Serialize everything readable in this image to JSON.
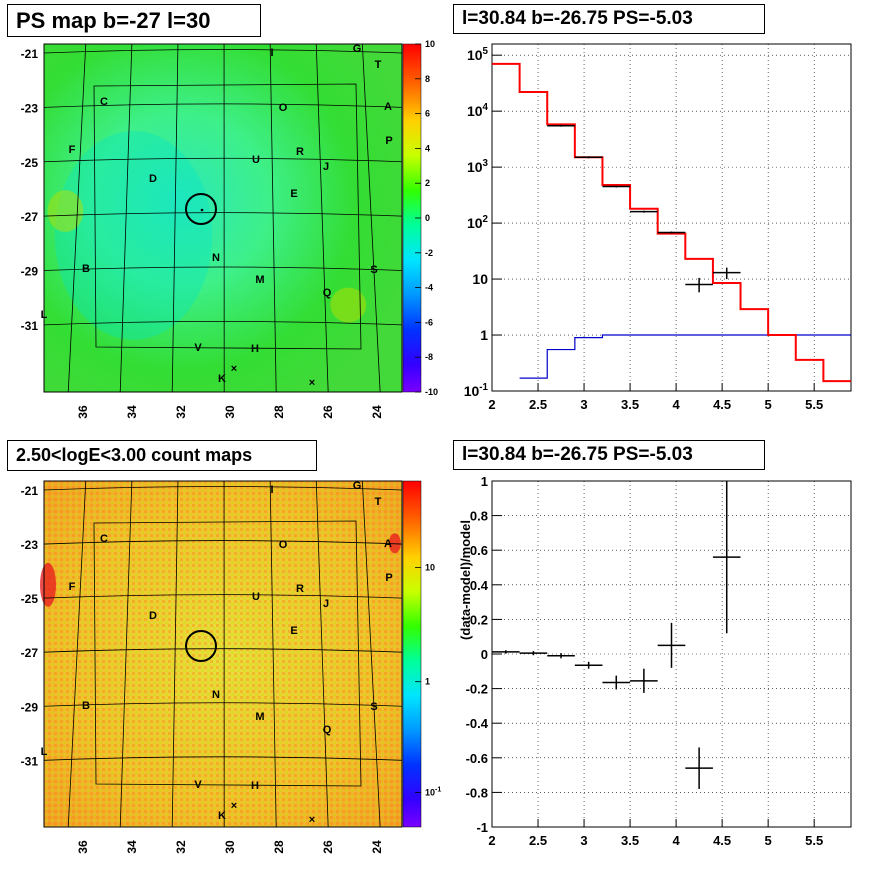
{
  "panels": {
    "tl_title": "PS map b=-27 l=30",
    "tr_title": "l=30.84 b=-26.75 PS=-5.03",
    "bl_title": "2.50<logE<3.00 count maps",
    "br_title": "l=30.84 b=-26.75 PS=-5.03"
  },
  "chart_data": [
    {
      "type": "heatmap",
      "name_printed": "",
      "x_ticks": [
        "36",
        "34",
        "32",
        "30",
        "28",
        "26",
        "24"
      ],
      "y_ticks": [
        "-21",
        "-23",
        "-25",
        "-27",
        "-29",
        "-31"
      ],
      "colorbar_ticks": [
        "10",
        "8",
        "6",
        "4",
        "2",
        "0",
        "-2",
        "-4",
        "-6",
        "-8",
        "-10"
      ],
      "zlim": [
        -10,
        10
      ],
      "source_labels": [
        "I",
        "G",
        "T",
        "C",
        "O",
        "A",
        "P",
        "F",
        "U",
        "R",
        "J",
        "D",
        "E",
        "N",
        "B",
        "M",
        "S",
        "Q",
        "V",
        "H",
        "K",
        "L"
      ],
      "marker": {
        "l": 30.84,
        "b": -26.75
      }
    },
    {
      "type": "step",
      "xlim": [
        2,
        5.9
      ],
      "y_log": true,
      "y_ticks": [
        "10^-1",
        "1",
        "10",
        "10^2",
        "10^3",
        "10^4",
        "10^5"
      ],
      "x_ticks": [
        "2",
        "2.5",
        "3",
        "3.5",
        "4",
        "4.5",
        "5",
        "5.5"
      ],
      "model_red": {
        "color": "#ff0000",
        "edges": [
          2.0,
          2.3,
          2.6,
          2.9,
          3.2,
          3.5,
          3.8,
          4.1,
          4.4,
          4.7,
          5.0,
          5.3,
          5.6,
          5.9
        ],
        "values": [
          70000,
          22000,
          5800,
          1500,
          480,
          180,
          65,
          23,
          8.5,
          2.9,
          1.0,
          0.36,
          0.15
        ]
      },
      "model_blue": {
        "color": "#0000cc",
        "edges": [
          2.3,
          2.6,
          2.9,
          3.2,
          3.5,
          3.8,
          4.1,
          4.4,
          4.7,
          5.0,
          5.3,
          5.9
        ],
        "values": [
          0.17,
          0.55,
          0.9,
          1.0,
          1.0,
          1.0,
          1.0,
          1.0,
          1.0,
          1.0,
          1.0
        ]
      },
      "data_points": [
        {
          "x": 2.75,
          "y": 5500,
          "xerr": 0.15
        },
        {
          "x": 3.05,
          "y": 1500,
          "xerr": 0.15
        },
        {
          "x": 3.35,
          "y": 450,
          "xerr": 0.15
        },
        {
          "x": 3.65,
          "y": 160,
          "xerr": 0.15
        },
        {
          "x": 3.95,
          "y": 68,
          "xerr": 0.15
        },
        {
          "x": 4.25,
          "y": 8.0,
          "xerr": 0.15,
          "ylo": 5.8,
          "yhi": 10.5
        },
        {
          "x": 4.55,
          "y": 13,
          "xerr": 0.15,
          "ylo": 10,
          "yhi": 16
        }
      ]
    },
    {
      "type": "heatmap",
      "x_ticks": [
        "36",
        "34",
        "32",
        "30",
        "28",
        "26",
        "24"
      ],
      "y_ticks": [
        "-21",
        "-23",
        "-25",
        "-27",
        "-29",
        "-31"
      ],
      "colorbar_ticks": [
        "10",
        "1",
        "10^-1"
      ],
      "z_log": true
    },
    {
      "type": "scatter",
      "ylabel": "(data-model)/model",
      "xlim": [
        2,
        5.9
      ],
      "ylim": [
        -1,
        1
      ],
      "x_ticks": [
        "2",
        "2.5",
        "3",
        "3.5",
        "4",
        "4.5",
        "5",
        "5.5"
      ],
      "y_ticks": [
        "-1",
        "-0.8",
        "-0.6",
        "-0.4",
        "-0.2",
        "0",
        "0.2",
        "0.4",
        "0.6",
        "0.8",
        "1"
      ],
      "points": [
        {
          "x": 2.15,
          "y": 0.012,
          "xerr": 0.15,
          "yerr": 0.01
        },
        {
          "x": 2.45,
          "y": 0.005,
          "xerr": 0.15,
          "yerr": 0.012
        },
        {
          "x": 2.75,
          "y": -0.01,
          "xerr": 0.15,
          "yerr": 0.015
        },
        {
          "x": 3.05,
          "y": -0.065,
          "xerr": 0.15,
          "yerr": 0.02
        },
        {
          "x": 3.35,
          "y": -0.165,
          "xerr": 0.15,
          "yerr": 0.04
        },
        {
          "x": 3.65,
          "y": -0.155,
          "xerr": 0.15,
          "yerr": 0.07
        },
        {
          "x": 3.95,
          "y": 0.05,
          "xerr": 0.15,
          "yerr": 0.13
        },
        {
          "x": 4.25,
          "y": -0.66,
          "xerr": 0.15,
          "yerr": 0.12
        },
        {
          "x": 4.55,
          "y": 0.56,
          "xerr": 0.15,
          "ylo": 0.12,
          "yhi": 1.0
        }
      ]
    }
  ]
}
